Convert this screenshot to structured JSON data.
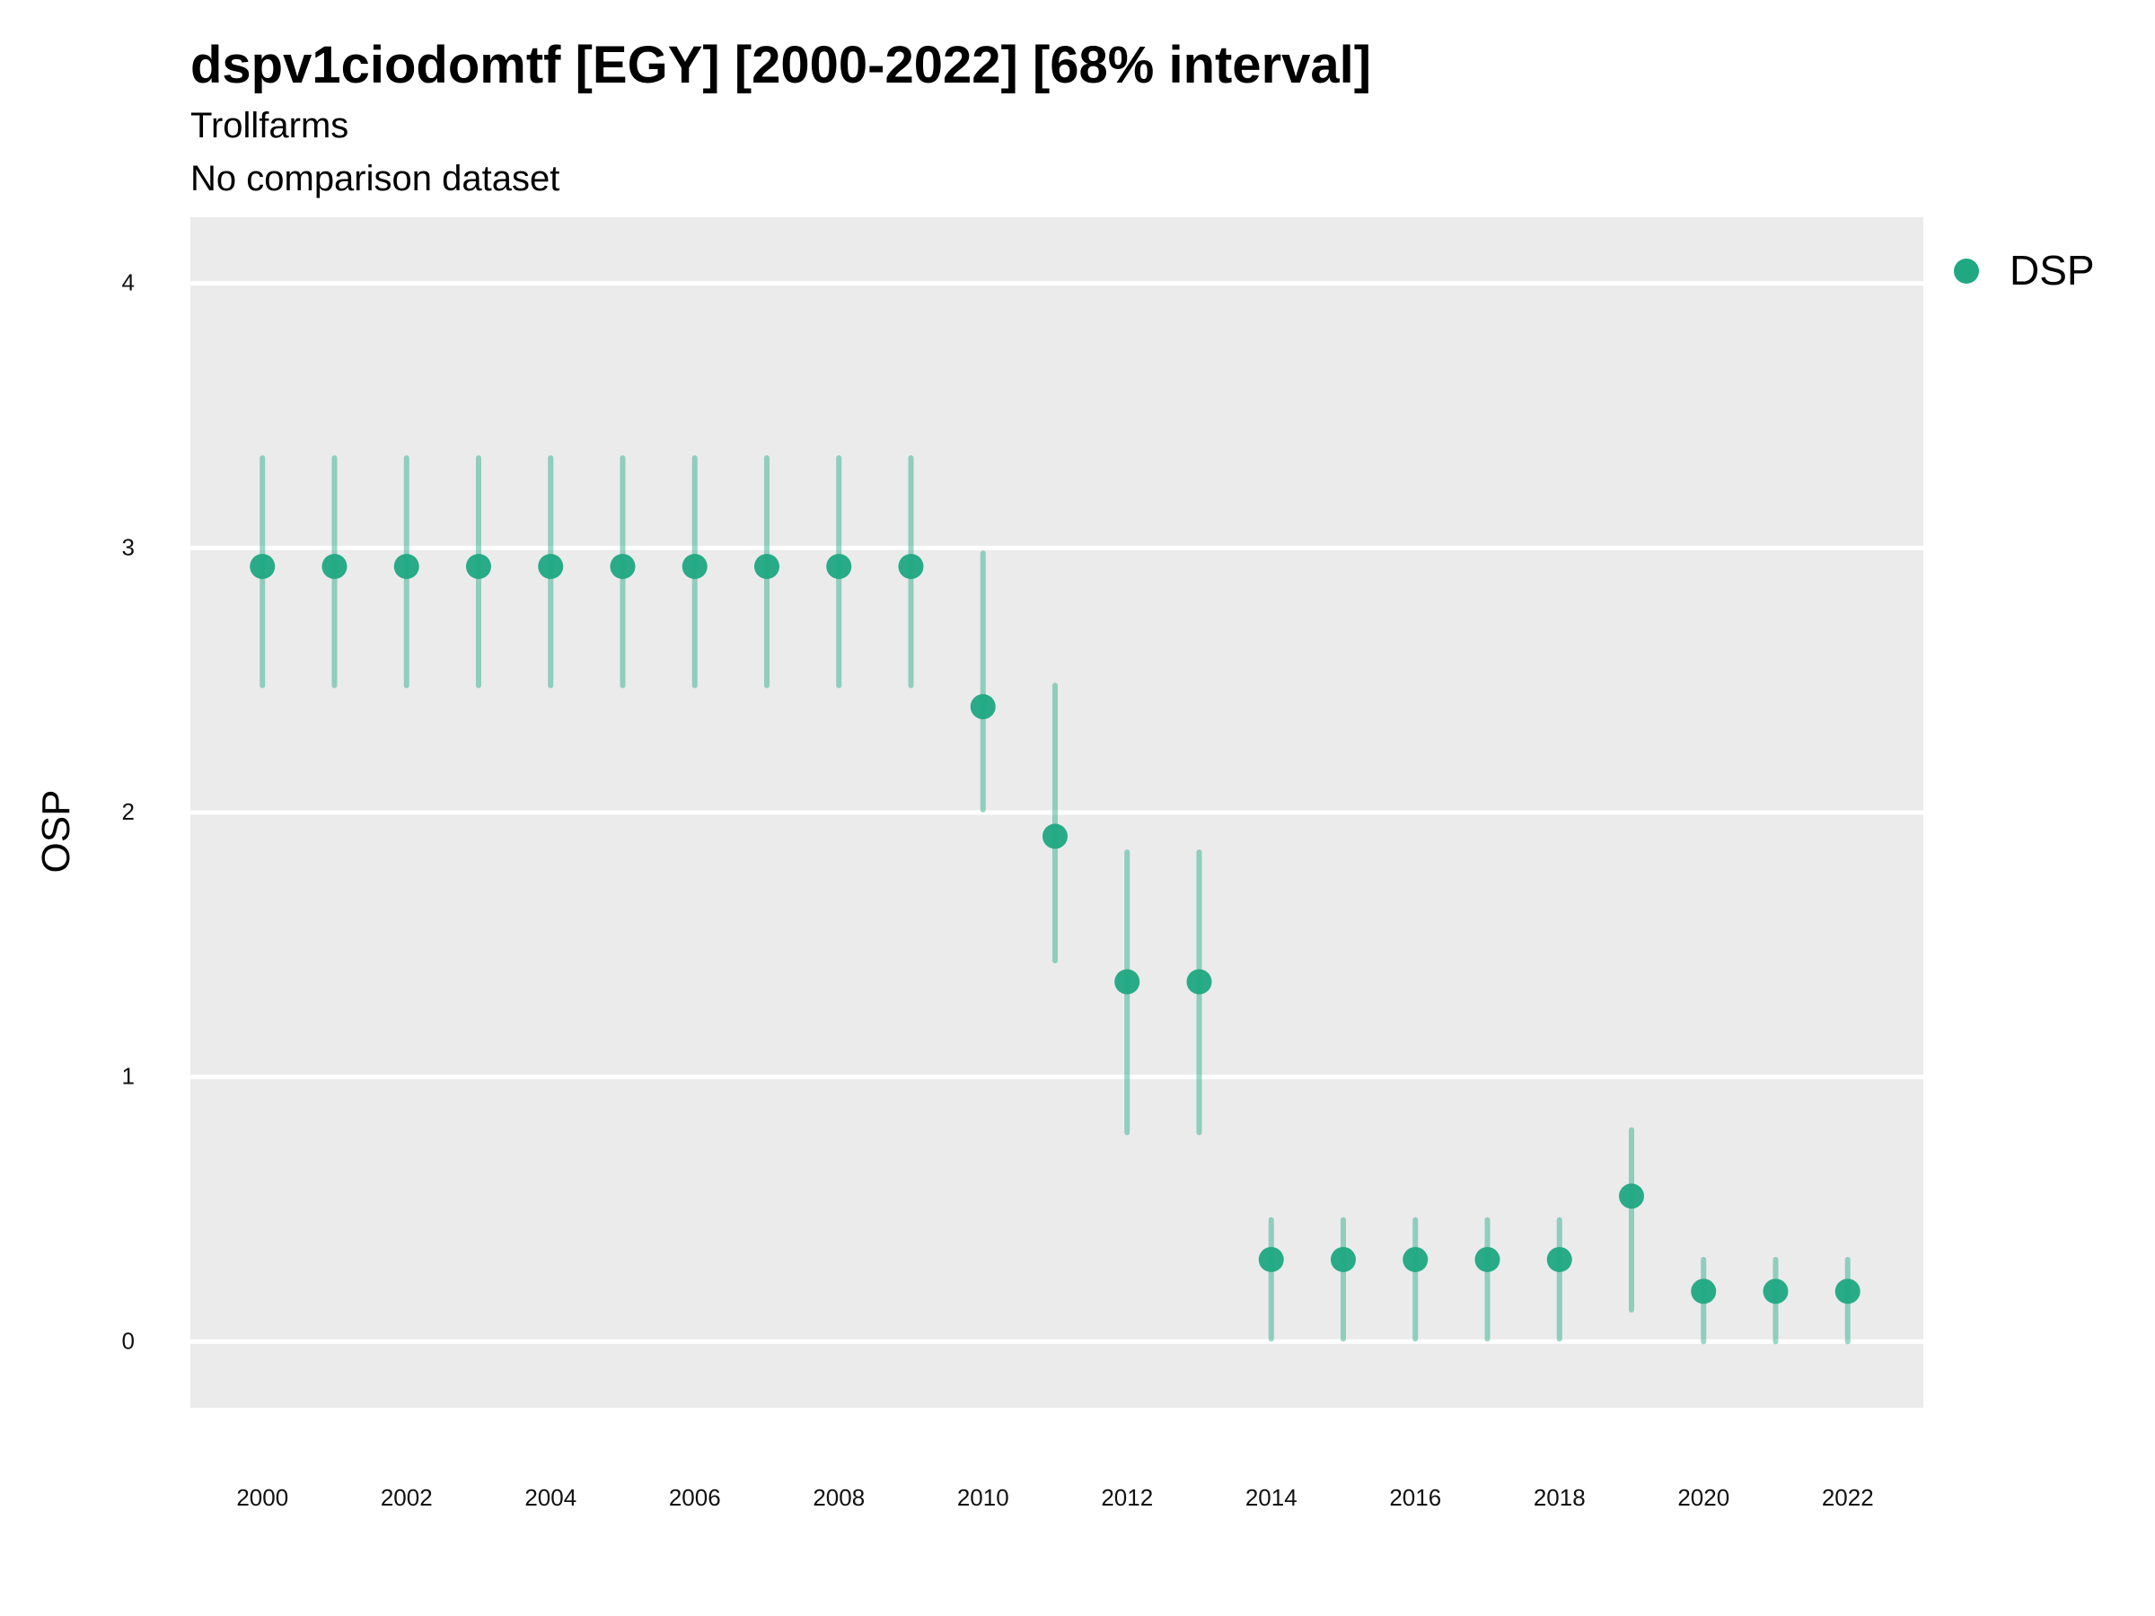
{
  "chart_data": {
    "type": "scatter",
    "title": "dspv1ciodomtf [EGY] [2000-2022] [68% interval]",
    "subtitle": [
      "Trollfarms",
      "No comparison dataset"
    ],
    "xlabel": "",
    "ylabel": "OSP",
    "xlim": [
      1999,
      2023.05
    ],
    "ylim": [
      -0.25,
      4.25
    ],
    "x_ticks": [
      "2000",
      "2002",
      "2004",
      "2006",
      "2008",
      "2010",
      "2012",
      "2014",
      "2016",
      "2018",
      "2020",
      "2022"
    ],
    "y_ticks": [
      "0",
      "1",
      "2",
      "3",
      "4"
    ],
    "grid": true,
    "legend_position": "right-top",
    "series": [
      {
        "name": "DSP",
        "color": "#1fa882",
        "x": [
          2000,
          2001,
          2002,
          2003,
          2004,
          2005,
          2006,
          2007,
          2008,
          2009,
          2010,
          2011,
          2012,
          2013,
          2014,
          2015,
          2016,
          2017,
          2018,
          2019,
          2020,
          2021,
          2022
        ],
        "y": [
          2.93,
          2.93,
          2.93,
          2.93,
          2.93,
          2.93,
          2.93,
          2.93,
          2.93,
          2.93,
          2.4,
          1.91,
          1.36,
          1.36,
          0.31,
          0.31,
          0.31,
          0.31,
          0.31,
          0.55,
          0.19,
          0.19,
          0.19
        ],
        "lower": [
          2.48,
          2.48,
          2.48,
          2.48,
          2.48,
          2.48,
          2.48,
          2.48,
          2.48,
          2.48,
          2.01,
          1.44,
          0.79,
          0.79,
          0.01,
          0.01,
          0.01,
          0.01,
          0.01,
          0.12,
          0.0,
          0.0,
          0.0
        ],
        "upper": [
          3.34,
          3.34,
          3.34,
          3.34,
          3.34,
          3.34,
          3.34,
          3.34,
          3.34,
          3.34,
          2.98,
          2.48,
          1.85,
          1.85,
          0.46,
          0.46,
          0.46,
          0.46,
          0.46,
          0.8,
          0.31,
          0.31,
          0.31
        ]
      }
    ]
  }
}
